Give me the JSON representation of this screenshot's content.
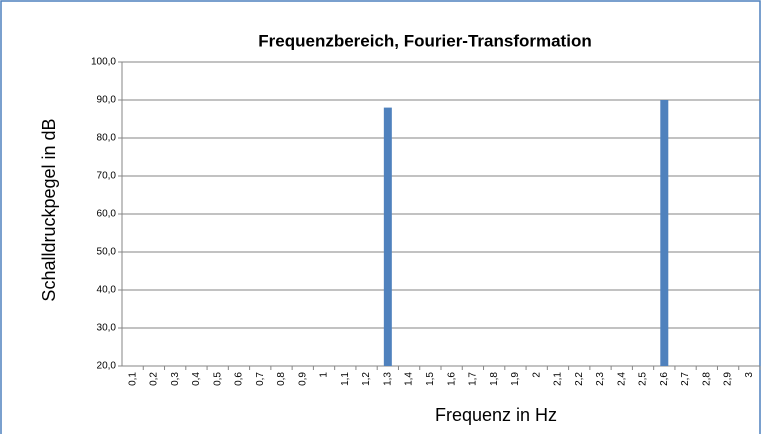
{
  "chart_data": {
    "type": "bar",
    "title": "Frequenzbereich, Fourier-Transformation",
    "x_label": "Frequenz in Hz",
    "y_label": "Schalldruckpegel in dB",
    "categories": [
      "0,1",
      "0,2",
      "0,3",
      "0,4",
      "0,5",
      "0,6",
      "0,7",
      "0,8",
      "0,9",
      "1",
      "1,1",
      "1,2",
      "1,3",
      "1,4",
      "1,5",
      "1,6",
      "1,7",
      "1,8",
      "1,9",
      "2",
      "2,1",
      "2,2",
      "2,3",
      "2,4",
      "2,5",
      "2,6",
      "2,7",
      "2,8",
      "2,9",
      "3"
    ],
    "values": [
      null,
      null,
      null,
      null,
      null,
      null,
      null,
      null,
      null,
      null,
      null,
      null,
      88,
      null,
      null,
      null,
      null,
      null,
      null,
      null,
      null,
      null,
      null,
      null,
      null,
      90,
      null,
      null,
      null,
      null
    ],
    "color": "#4f81bd",
    "ylim": [
      20,
      100
    ],
    "yticks": [
      {
        "value": 20,
        "label": "20,0"
      },
      {
        "value": 30,
        "label": "30,0"
      },
      {
        "value": 40,
        "label": "40,0"
      },
      {
        "value": 50,
        "label": "50,0"
      },
      {
        "value": 60,
        "label": "60,0"
      },
      {
        "value": 70,
        "label": "70,0"
      },
      {
        "value": 80,
        "label": "80,0"
      },
      {
        "value": 90,
        "label": "90,0"
      },
      {
        "value": 100,
        "label": "100,0"
      }
    ],
    "grid": true
  }
}
